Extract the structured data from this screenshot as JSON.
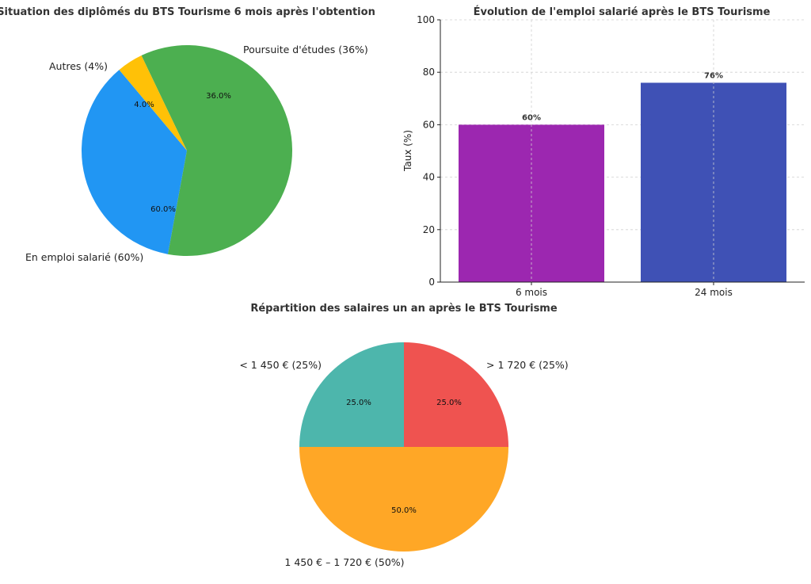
{
  "chart_data": [
    {
      "type": "pie",
      "title": "Situation des diplômés du BTS Tourisme 6 mois après l'obtention",
      "slices": [
        {
          "label": "Poursuite d'études (36%)",
          "value": 36,
          "pct": "36.0%",
          "color": "#2196f3"
        },
        {
          "label": "En emploi salarié (60%)",
          "value": 60,
          "pct": "60.0%",
          "color": "#4caf50"
        },
        {
          "label": "Autres (4%)",
          "value": 4,
          "pct": "4.0%",
          "color": "#ffc107"
        }
      ]
    },
    {
      "type": "bar",
      "title": "Évolution de l'emploi salarié après le BTS Tourisme",
      "categories": [
        "6 mois",
        "24 mois"
      ],
      "values": [
        60,
        76
      ],
      "value_labels": [
        "60%",
        "76%"
      ],
      "colors": [
        "#9c27b0",
        "#3f51b5"
      ],
      "ylabel": "Taux (%)",
      "ylim": [
        0,
        100
      ],
      "yticks": [
        "0",
        "20",
        "40",
        "60",
        "80",
        "100"
      ],
      "grid": true
    },
    {
      "type": "pie",
      "title": "Répartition des salaires un an après le BTS Tourisme",
      "slices": [
        {
          "label": "> 1 720 € (25%)",
          "value": 25,
          "pct": "25.0%",
          "color": "#4db6ac"
        },
        {
          "label": "1 450 € – 1 720 € (50%)",
          "value": 50,
          "pct": "50.0%",
          "color": "#ffa726"
        },
        {
          "label": "< 1 450 € (25%)",
          "value": 25,
          "pct": "25.0%",
          "color": "#ef5350"
        }
      ]
    }
  ]
}
